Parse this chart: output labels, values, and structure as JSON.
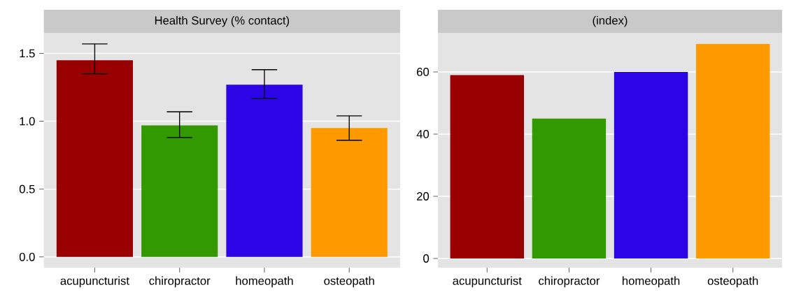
{
  "chart_data": [
    {
      "type": "bar",
      "title": "Health Survey (% contact)",
      "categories": [
        "acupuncturist",
        "chiropractor",
        "homeopath",
        "osteopath"
      ],
      "values": [
        1.45,
        0.97,
        1.27,
        0.95
      ],
      "colors": [
        "#990000",
        "#339900",
        "#2b05e6",
        "#ff9900"
      ],
      "errors": [
        [
          1.35,
          1.57
        ],
        [
          0.88,
          1.07
        ],
        [
          1.17,
          1.38
        ],
        [
          0.86,
          1.04
        ]
      ],
      "ylim": [
        -0.08,
        1.65
      ],
      "yticks": [
        {
          "value": 0,
          "label": "0.0"
        },
        0.5,
        {
          "value": 1,
          "label": "1.0"
        },
        1.5
      ],
      "grid": "y"
    },
    {
      "type": "bar",
      "title": "(index)",
      "categories": [
        "acupuncturist",
        "chiropractor",
        "homeopath",
        "osteopath"
      ],
      "values": [
        59,
        45,
        60,
        69
      ],
      "colors": [
        "#990000",
        "#339900",
        "#2b05e6",
        "#ff9900"
      ],
      "ylim": [
        -3,
        72.5
      ],
      "yticks": [
        0,
        20,
        40,
        60
      ],
      "grid": "y"
    }
  ]
}
